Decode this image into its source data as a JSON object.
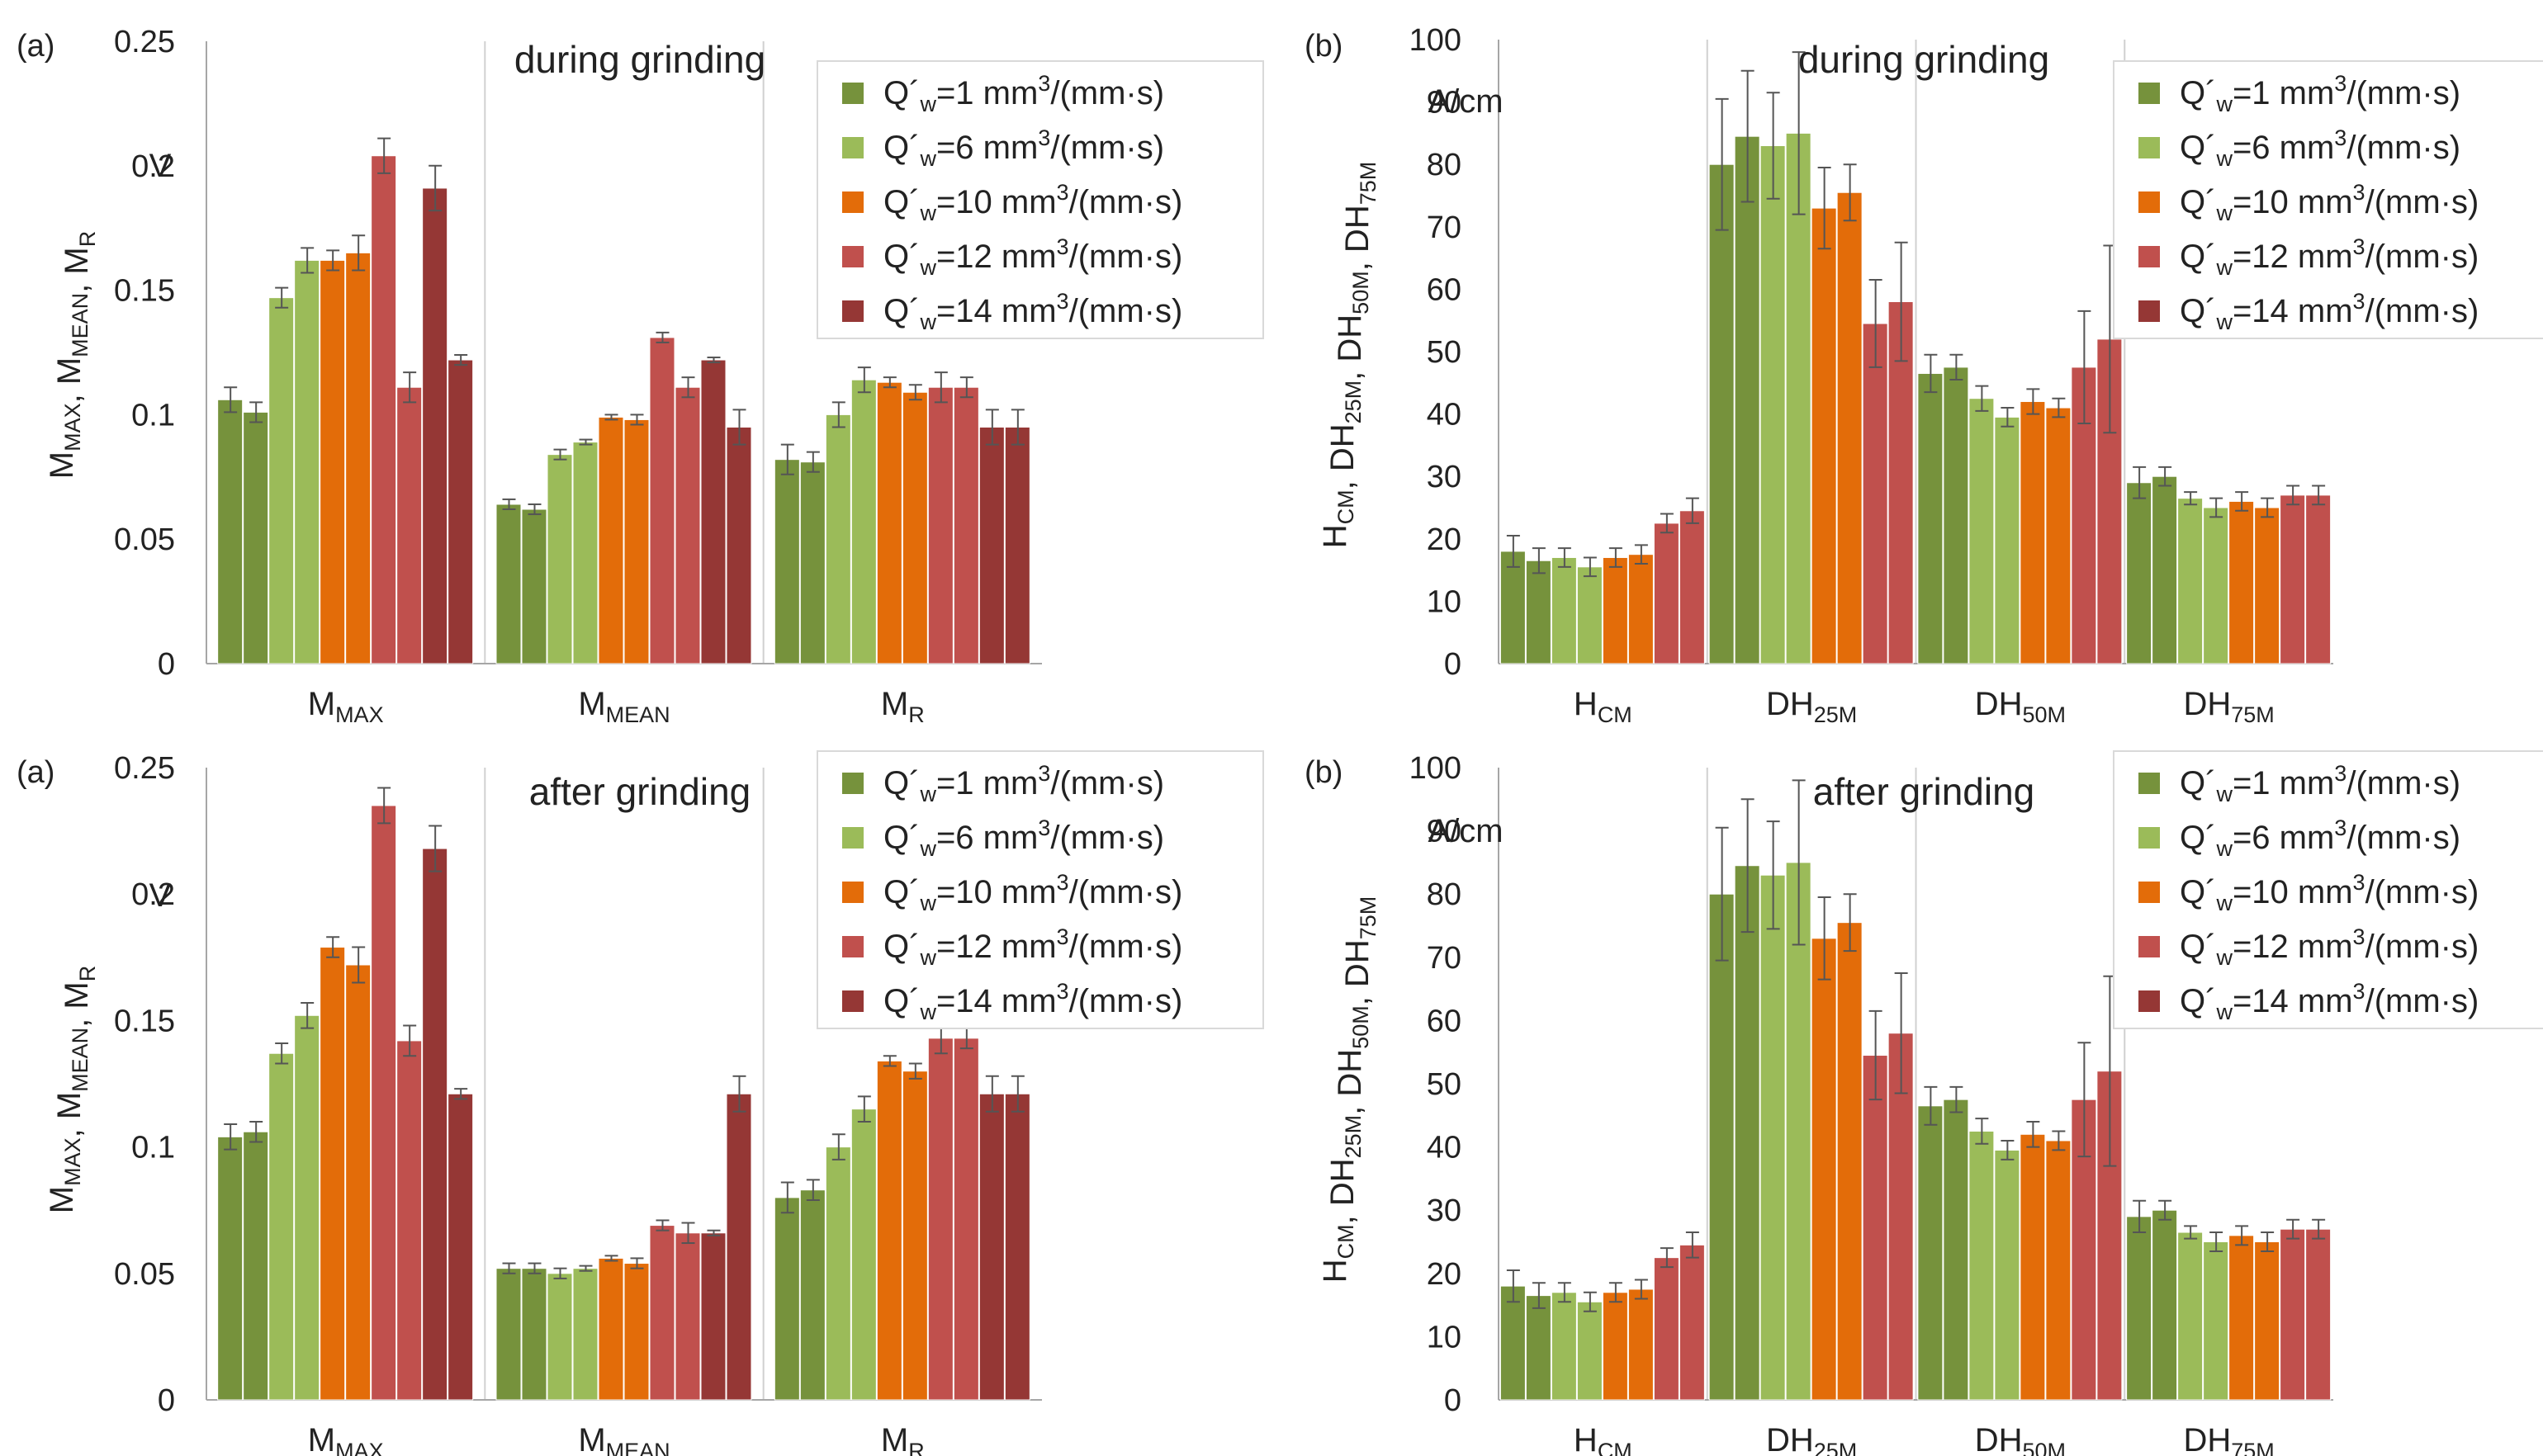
{
  "chart_data": [
    {
      "type": "bar",
      "panel_label": "(a)",
      "title": "during grinding",
      "unit_label": "V",
      "ylabel": {
        "parts": [
          [
            "M",
            "MAX"
          ],
          [
            "M",
            "MEAN"
          ],
          [
            "M",
            "R"
          ]
        ]
      },
      "ylim": [
        0,
        0.25
      ],
      "yticks": [
        "0",
        "0.05",
        "0.1",
        "0.15",
        "0.2",
        "0.25"
      ],
      "categories": [
        {
          "main": "M",
          "sub": "MAX"
        },
        {
          "main": "M",
          "sub": "MEAN"
        },
        {
          "main": "M",
          "sub": "R"
        }
      ],
      "series": [
        {
          "name": "Q´w=1 mm3/(mm·s)",
          "color": "#76923c",
          "values": [
            [
              0.106,
              0.101
            ],
            [
              0.064,
              0.062
            ],
            [
              0.082,
              0.081
            ]
          ],
          "errors": [
            [
              0.005,
              0.004
            ],
            [
              0.002,
              0.002
            ],
            [
              0.006,
              0.004
            ]
          ]
        },
        {
          "name": "Q´w=6 mm3/(mm·s)",
          "color": "#9bbb59",
          "values": [
            [
              0.147,
              0.162
            ],
            [
              0.084,
              0.089
            ],
            [
              0.1,
              0.114
            ]
          ],
          "errors": [
            [
              0.004,
              0.005
            ],
            [
              0.002,
              0.001
            ],
            [
              0.005,
              0.005
            ]
          ]
        },
        {
          "name": "Q´w=10 mm3/(mm·s)",
          "color": "#e36c09",
          "values": [
            [
              0.162,
              0.165
            ],
            [
              0.099,
              0.098
            ],
            [
              0.113,
              0.109
            ]
          ],
          "errors": [
            [
              0.004,
              0.007
            ],
            [
              0.001,
              0.002
            ],
            [
              0.002,
              0.003
            ]
          ]
        },
        {
          "name": "Q´w=12 mm3/(mm·s)",
          "color": "#c0504d",
          "values": [
            [
              0.204,
              0.111
            ],
            [
              0.131,
              0.111
            ],
            [
              0.111,
              0.111
            ]
          ],
          "errors": [
            [
              0.007,
              0.006
            ],
            [
              0.002,
              0.004
            ],
            [
              0.006,
              0.004
            ]
          ]
        },
        {
          "name": "Q´w=14 mm3/(mm·s)",
          "color": "#953735",
          "values": [
            [
              0.191,
              0.122
            ],
            [
              0.122,
              0.095
            ],
            [
              0.095,
              0.095
            ]
          ],
          "errors": [
            [
              0.009,
              0.002
            ],
            [
              0.001,
              0.007
            ],
            [
              0.007,
              0.007
            ]
          ]
        }
      ]
    },
    {
      "type": "bar",
      "panel_label": "(b)",
      "title": "during grinding",
      "unit_label": "A/cm",
      "ylabel": {
        "parts": [
          [
            "H",
            "CM"
          ],
          [
            "DH",
            "25M"
          ],
          [
            "DH",
            "50M"
          ],
          [
            "DH",
            "75M"
          ]
        ]
      },
      "ylim": [
        0,
        100
      ],
      "yticks": [
        "0",
        "10",
        "20",
        "30",
        "40",
        "50",
        "60",
        "70",
        "80",
        "90",
        "100"
      ],
      "categories": [
        {
          "main": "H",
          "sub": "CM"
        },
        {
          "main": "DH",
          "sub": "25M"
        },
        {
          "main": "DH",
          "sub": "50M"
        },
        {
          "main": "DH",
          "sub": "75M"
        }
      ],
      "series": [
        {
          "name": "Q´w=1 mm3/(mm·s)",
          "color": "#76923c",
          "values": [
            [
              18,
              16.5
            ],
            [
              80,
              84.5
            ],
            [
              46.5,
              47.5
            ],
            [
              29,
              30
            ]
          ],
          "errors": [
            [
              2.5,
              2
            ],
            [
              10.5,
              10.5
            ],
            [
              3,
              2
            ],
            [
              2.5,
              1.5
            ]
          ]
        },
        {
          "name": "Q´w=6 mm3/(mm·s)",
          "color": "#9bbb59",
          "values": [
            [
              17,
              15.5
            ],
            [
              83,
              85
            ],
            [
              42.5,
              39.5
            ],
            [
              26.5,
              25
            ]
          ],
          "errors": [
            [
              1.5,
              1.5
            ],
            [
              8.5,
              13
            ],
            [
              2,
              1.5
            ],
            [
              1,
              1.5
            ]
          ]
        },
        {
          "name": "Q´w=10 mm3/(mm·s)",
          "color": "#e36c09",
          "values": [
            [
              17,
              17.5
            ],
            [
              73,
              75.5
            ],
            [
              42,
              41
            ],
            [
              26,
              25
            ]
          ],
          "errors": [
            [
              1.5,
              1.5
            ],
            [
              6.5,
              4.5
            ],
            [
              2,
              1.5
            ],
            [
              1.5,
              1.5
            ]
          ]
        },
        {
          "name": "Q´w=12 mm3/(mm·s)",
          "color": "#c0504d",
          "values": [
            [
              22.5,
              24.5
            ],
            [
              54.5,
              58
            ],
            [
              47.5,
              52
            ],
            [
              27,
              27
            ]
          ],
          "errors": [
            [
              1.5,
              2
            ],
            [
              7,
              9.5
            ],
            [
              9,
              15
            ],
            [
              1.5,
              1.5
            ]
          ]
        }
      ]
    }
  ],
  "legend_entries": [
    {
      "color": "#76923c",
      "prefix": "Q´",
      "sub": "w",
      "middle": "=1 mm",
      "sup": "3",
      "suffix": "/(mm·s)"
    },
    {
      "color": "#9bbb59",
      "prefix": "Q´",
      "sub": "w",
      "middle": "=6 mm",
      "sup": "3",
      "suffix": "/(mm·s)"
    },
    {
      "color": "#e36c09",
      "prefix": "Q´",
      "sub": "w",
      "middle": "=10 mm",
      "sup": "3",
      "suffix": "/(mm·s)"
    },
    {
      "color": "#c0504d",
      "prefix": "Q´",
      "sub": "w",
      "middle": "=12 mm",
      "sup": "3",
      "suffix": "/(mm·s)"
    },
    {
      "color": "#953735",
      "prefix": "Q´",
      "sub": "w",
      "middle": "=14 mm",
      "sup": "3",
      "suffix": "/(mm·s)"
    }
  ]
}
